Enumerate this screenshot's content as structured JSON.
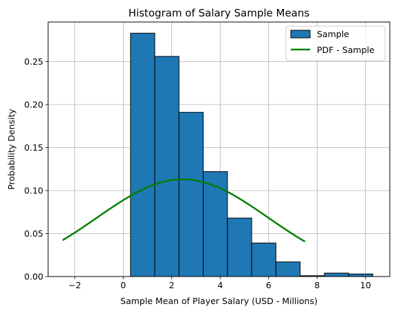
{
  "chart_data": {
    "type": "bar",
    "title": "Histogram of Salary Sample Means",
    "xlabel": "Sample Mean of Player Salary (USD - Millions)",
    "ylabel": "Probability Density",
    "xlim": [
      -3.1,
      11.0
    ],
    "ylim": [
      0,
      0.296
    ],
    "xticks": [
      -2,
      0,
      2,
      4,
      6,
      8,
      10
    ],
    "xtick_labels": [
      "−2",
      "0",
      "2",
      "4",
      "6",
      "8",
      "10"
    ],
    "yticks": [
      0,
      0.05,
      0.1,
      0.15,
      0.2,
      0.25
    ],
    "ytick_labels": [
      "0.00",
      "0.05",
      "0.10",
      "0.15",
      "0.20",
      "0.25"
    ],
    "grid": true,
    "legend_position": "top-right",
    "series": [
      {
        "name": "Sample",
        "kind": "histogram",
        "color": "#1f77b4",
        "edgecolor": "#000000",
        "bins": [
          {
            "x0": 0.3,
            "x1": 1.3,
            "density": 0.283
          },
          {
            "x0": 1.3,
            "x1": 2.3,
            "density": 0.256
          },
          {
            "x0": 2.3,
            "x1": 3.3,
            "density": 0.191
          },
          {
            "x0": 3.3,
            "x1": 4.3,
            "density": 0.122
          },
          {
            "x0": 4.3,
            "x1": 5.3,
            "density": 0.068
          },
          {
            "x0": 5.3,
            "x1": 6.3,
            "density": 0.039
          },
          {
            "x0": 6.3,
            "x1": 7.3,
            "density": 0.017
          },
          {
            "x0": 7.3,
            "x1": 8.3,
            "density": 0.001
          },
          {
            "x0": 8.3,
            "x1": 9.3,
            "density": 0.004
          },
          {
            "x0": 9.3,
            "x1": 10.3,
            "density": 0.003
          }
        ]
      },
      {
        "name": "PDF - Sample",
        "kind": "line",
        "color": "#008000",
        "normal": {
          "mean": 2.45,
          "std": 3.53,
          "x_from": -2.5,
          "x_to": 7.5
        }
      }
    ]
  }
}
